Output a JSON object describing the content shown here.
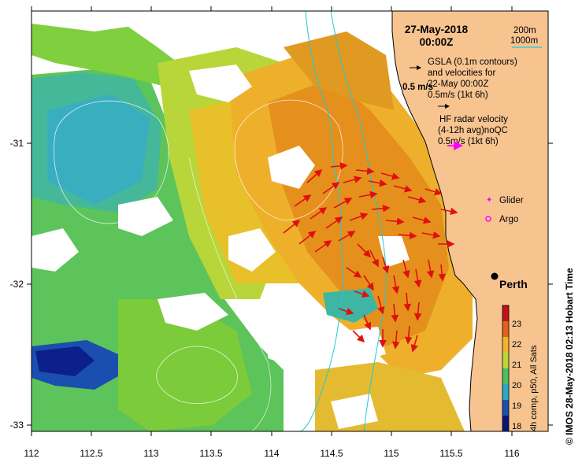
{
  "header": {
    "date": "27-May-2018",
    "time": "00:00Z"
  },
  "depth_legend": {
    "contour_200": "200m",
    "contour_1000": "1000m"
  },
  "vector_legend": {
    "gsla_line1": "GSLA (0.1m contours)",
    "gsla_line2": "and velocities for",
    "gsla_line3": "22-May 00:00Z",
    "gsla_scale": "0.5m/s (1kt 6h)",
    "scale_marker": "0.5 m/s",
    "hf_line1": "HF radar velocity",
    "hf_line2": "(4-12h avg)noQC",
    "hf_scale": "0.5m/s (1kt 6h)"
  },
  "markers": {
    "glider": "Glider",
    "argo": "Argo",
    "city": "Perth"
  },
  "colorbar": {
    "ticks": [
      "23",
      "22",
      "21",
      "20",
      "19",
      "18"
    ],
    "label": "4h comp, p50, All Sats"
  },
  "axes": {
    "x_ticks": [
      "112",
      "112.5",
      "113",
      "113.5",
      "114",
      "114.5",
      "115",
      "115.5",
      "116"
    ],
    "y_ticks": [
      "-31",
      "-32",
      "-33"
    ]
  },
  "side_text": "© IMOS 28-May-2018 02:13 Hobart Time",
  "colors": {
    "land": "#f7c490",
    "arrow": "#e01010",
    "hf_arrow": "#ff00ff",
    "contour_cyan": "#22c8d8"
  }
}
